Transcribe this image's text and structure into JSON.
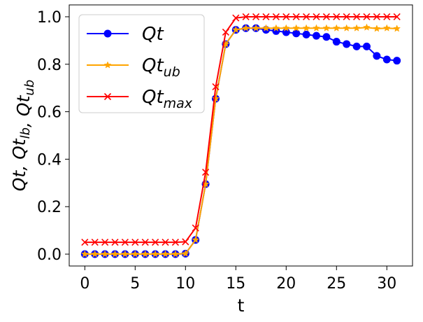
{
  "chart_data": {
    "type": "line",
    "xlabel": "t",
    "ylabel": "Qt, Qt_lb, Qt_ub",
    "xlim": [
      -1.55,
      32.55
    ],
    "ylim": [
      -0.05,
      1.05
    ],
    "xticks": [
      0,
      5,
      10,
      15,
      20,
      25,
      30
    ],
    "yticks": [
      0.0,
      0.2,
      0.4,
      0.6,
      0.8,
      1.0
    ],
    "xtick_labels": [
      "0",
      "5",
      "10",
      "15",
      "20",
      "25",
      "30"
    ],
    "ytick_labels": [
      "0.0",
      "0.2",
      "0.4",
      "0.6",
      "0.8",
      "1.0"
    ],
    "legend_position": "top-left",
    "grid": false,
    "x": [
      0,
      1,
      2,
      3,
      4,
      5,
      6,
      7,
      8,
      9,
      10,
      11,
      12,
      13,
      14,
      15,
      16,
      17,
      18,
      19,
      20,
      21,
      22,
      23,
      24,
      25,
      26,
      27,
      28,
      29,
      30,
      31
    ],
    "series": [
      {
        "name": "Qt",
        "legend_label": "Qt",
        "legend_sub": "",
        "color": "#0000ff",
        "marker": "circle",
        "values": [
          0,
          0,
          0,
          0,
          0,
          0,
          0,
          0,
          0,
          0,
          0.002,
          0.06,
          0.295,
          0.655,
          0.885,
          0.945,
          0.952,
          0.952,
          0.945,
          0.94,
          0.935,
          0.93,
          0.925,
          0.92,
          0.915,
          0.895,
          0.885,
          0.875,
          0.875,
          0.835,
          0.82,
          0.815
        ]
      },
      {
        "name": "Qt_ub",
        "legend_label": "Qt",
        "legend_sub": "ub",
        "color": "#ffa500",
        "marker": "star",
        "values": [
          0,
          0,
          0,
          0,
          0,
          0,
          0,
          0,
          0,
          0,
          0.002,
          0.06,
          0.295,
          0.655,
          0.885,
          0.945,
          0.952,
          0.952,
          0.952,
          0.952,
          0.952,
          0.952,
          0.952,
          0.952,
          0.952,
          0.952,
          0.952,
          0.952,
          0.955,
          0.95,
          0.952,
          0.95
        ]
      },
      {
        "name": "Qt_max",
        "legend_label": "Qt",
        "legend_sub": "max",
        "color": "#ff0000",
        "marker": "x",
        "values": [
          0.05,
          0.05,
          0.05,
          0.05,
          0.05,
          0.05,
          0.05,
          0.05,
          0.05,
          0.05,
          0.052,
          0.11,
          0.345,
          0.705,
          0.935,
          0.995,
          1,
          1,
          1,
          1,
          1,
          1,
          1,
          1,
          1,
          1,
          1,
          1,
          1,
          1,
          1,
          1
        ]
      }
    ]
  }
}
